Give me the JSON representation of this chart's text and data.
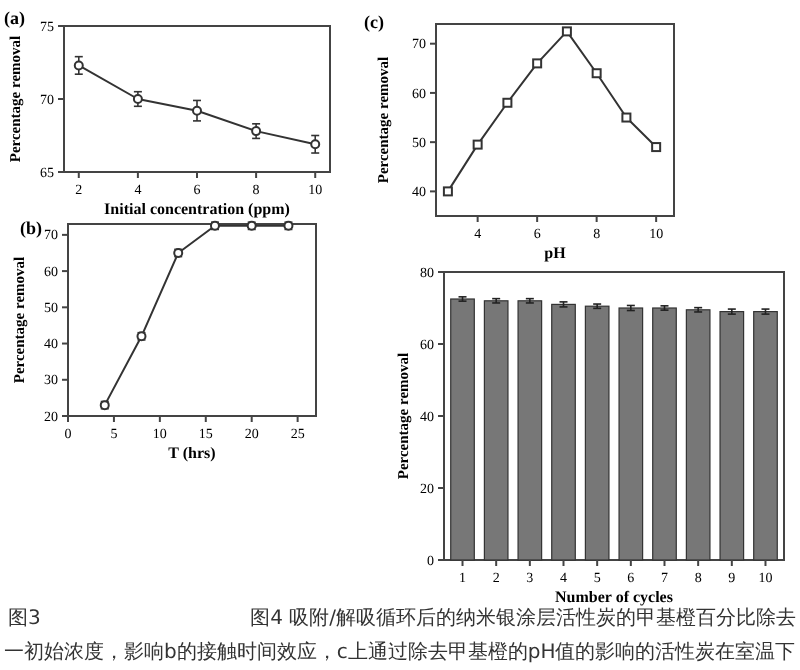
{
  "chart_data": [
    {
      "type": "line",
      "title": "(a)",
      "xlabel": "Initial concentration (ppm)",
      "ylabel": "Percentage removal",
      "x": [
        2,
        4,
        6,
        8,
        10
      ],
      "xlim": [
        1.5,
        10.5
      ],
      "xticks": [
        2,
        4,
        6,
        8,
        10
      ],
      "ylim": [
        65,
        75
      ],
      "yticks": [
        65,
        70,
        75
      ],
      "grid": false,
      "marker": "circle",
      "line_style": "solid",
      "series": [
        {
          "color": "#333333",
          "values": [
            72.3,
            70,
            69.2,
            67.8,
            66.9
          ],
          "errors": [
            0.6,
            0.5,
            0.7,
            0.5,
            0.6
          ]
        }
      ],
      "annotations": [
        "图3",
        "一初始浓度，影响b的接触时间效应，c上通过除去甲基橙的pH值的影响的活性炭在室温下"
      ]
    },
    {
      "type": "line",
      "title": "(c)",
      "xlabel": "pH",
      "ylabel": "Percentage removal",
      "x": [
        3,
        4,
        5,
        6,
        7,
        8,
        9,
        10
      ],
      "xlim": [
        2.6,
        10.6
      ],
      "xticks": [
        4,
        6,
        8,
        10
      ],
      "ylim": [
        35,
        74
      ],
      "yticks": [
        40,
        50,
        60,
        70
      ],
      "grid": false,
      "marker": "square",
      "line_style": "solid",
      "series": [
        {
          "color": "#333333",
          "values": [
            40,
            49.5,
            58,
            66,
            72.5,
            64,
            55,
            49
          ],
          "errors": [
            0.7,
            0.7,
            0.7,
            0.7,
            0.7,
            0.7,
            0.7,
            0.7
          ]
        }
      ]
    },
    {
      "type": "line",
      "title": "(b)",
      "xlabel": "T (hrs)",
      "ylabel": "Percentage removal",
      "x": [
        4,
        8,
        12,
        16,
        20,
        24
      ],
      "xlim": [
        0,
        27
      ],
      "xticks": [
        0,
        5,
        10,
        15,
        20,
        25
      ],
      "ylim": [
        20,
        73
      ],
      "yticks": [
        20,
        30,
        40,
        50,
        60,
        70
      ],
      "grid": false,
      "marker": "circle",
      "line_style": "solid",
      "series": [
        {
          "color": "#333333",
          "values": [
            23,
            42,
            65,
            72.5,
            72.5,
            72.5
          ],
          "errors": [
            1,
            1,
            1,
            1,
            1,
            1
          ]
        }
      ]
    },
    {
      "type": "bar",
      "xlabel": "Number of cycles",
      "ylabel": "Percentage removal",
      "categories": [
        "1",
        "2",
        "3",
        "4",
        "5",
        "6",
        "7",
        "8",
        "9",
        "10"
      ],
      "ylim": [
        0,
        80
      ],
      "yticks": [
        0,
        20,
        40,
        60,
        80
      ],
      "grid": false,
      "series": [
        {
          "color": "#777777",
          "values": [
            72.5,
            72,
            72,
            71,
            70.5,
            70,
            70,
            69.5,
            69,
            69
          ],
          "errors": [
            0.6,
            0.6,
            0.6,
            0.7,
            0.6,
            0.7,
            0.6,
            0.6,
            0.7,
            0.7
          ]
        }
      ],
      "annotations": [
        "图4 吸附/解吸循环后的纳米银涂层活性炭的甲基橙百分比除去"
      ]
    }
  ]
}
